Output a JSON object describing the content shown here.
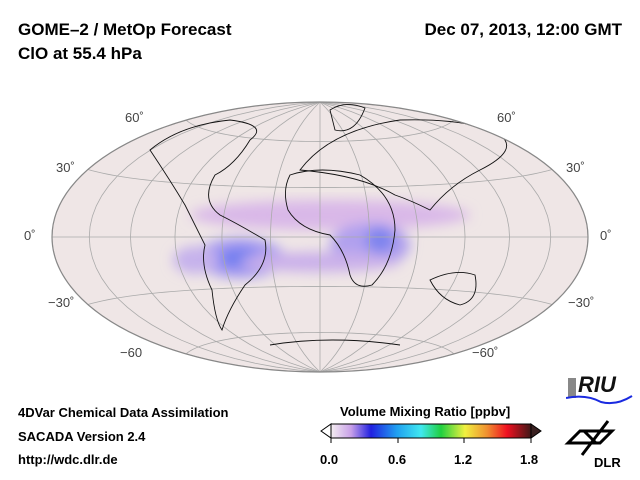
{
  "header": {
    "title_line1": "GOME–2 / MetOp Forecast",
    "title_line2": "ClO at 55.4 hPa",
    "datetime": "Dec 07, 2013, 12:00 GMT"
  },
  "map": {
    "lat_labels_left": [
      "60˚",
      "30˚",
      "0˚",
      "−30˚",
      "−60"
    ],
    "lat_labels_right": [
      "60˚",
      "30˚",
      "0˚",
      "−30˚",
      "−60˚"
    ],
    "ocean_color": "#efe6e6",
    "outline_color": "#888888"
  },
  "footer": {
    "line1": "4DVar Chemical Data Assimilation",
    "line2": "SACADA Version 2.4",
    "line3": "http://wdc.dlr.de"
  },
  "colorbar": {
    "title": "Volume Mixing Ratio [ppbv]",
    "ticks": [
      "0.0",
      "0.6",
      "1.2",
      "1.8"
    ],
    "range": [
      0,
      1.8
    ]
  },
  "logos": {
    "riu": "RIU",
    "dlr": "DLR"
  }
}
